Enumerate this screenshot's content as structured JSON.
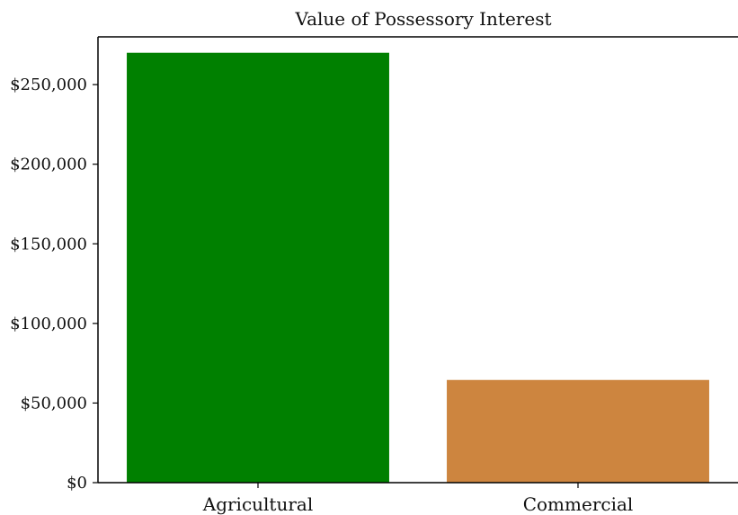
{
  "chart_data": {
    "type": "bar",
    "title": "Value of Possessory Interest",
    "categories": [
      "Agricultural",
      "Commercial"
    ],
    "values": [
      270000,
      64500
    ],
    "colors": [
      "#008000",
      "#cd853f"
    ],
    "ylim": [
      0,
      280000
    ],
    "yticks": [
      0,
      50000,
      100000,
      150000,
      200000,
      250000
    ],
    "ytick_labels": [
      "$0",
      "$50,000",
      "$100,000",
      "$150,000",
      "$200,000",
      "$250,000"
    ],
    "xlabel": "",
    "ylabel": "",
    "grid": false,
    "legend": "none"
  }
}
